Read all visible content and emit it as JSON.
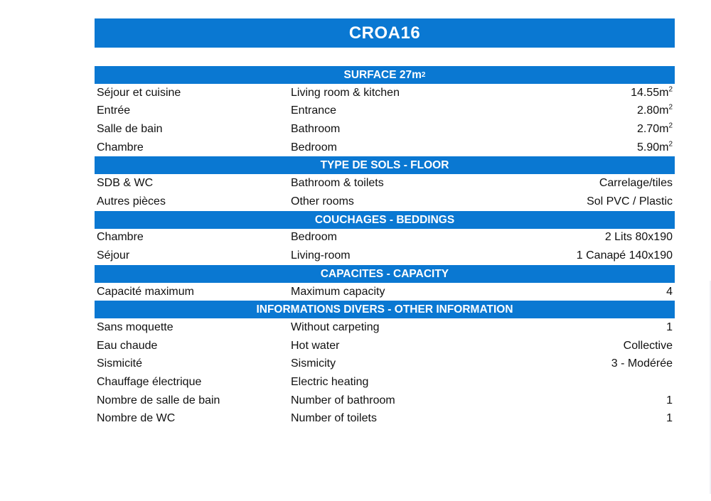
{
  "title": "CROA16",
  "sections": [
    {
      "heading": "SURFACE 27m",
      "heading_sup": "2",
      "rows": [
        {
          "fr": "Séjour et cuisine",
          "en": "Living room & kitchen",
          "value": "14.55m",
          "sup": "2"
        },
        {
          "fr": "Entrée",
          "en": "Entrance",
          "value": "2.80m",
          "sup": "2"
        },
        {
          "fr": "Salle de bain",
          "en": "Bathroom",
          "value": "2.70m",
          "sup": "2"
        },
        {
          "fr": "Chambre",
          "en": "Bedroom",
          "value": "5.90m",
          "sup": "2"
        }
      ]
    },
    {
      "heading": "TYPE DE SOLS - FLOOR",
      "rows": [
        {
          "fr": "SDB & WC",
          "en": "Bathroom & toilets",
          "value": "Carrelage/tiles"
        },
        {
          "fr": "Autres pièces",
          "en": "Other rooms",
          "value": "Sol PVC / Plastic"
        }
      ]
    },
    {
      "heading": "COUCHAGES - BEDDINGS",
      "rows": [
        {
          "fr": "Chambre",
          "en": "Bedroom",
          "value": "2 Lits 80x190"
        },
        {
          "fr": "Séjour",
          "en": "Living-room",
          "value": "1 Canapé 140x190"
        }
      ]
    },
    {
      "heading": "CAPACITES - CAPACITY",
      "rows": [
        {
          "fr": "Capacité maximum",
          "en": "Maximum capacity",
          "value": "4"
        }
      ]
    },
    {
      "heading": "INFORMATIONS DIVERS - OTHER INFORMATION",
      "rows": [
        {
          "fr": "Sans moquette",
          "en": "Without carpeting",
          "value": "1"
        },
        {
          "fr": "Eau chaude",
          "en": "Hot water",
          "value": "Collective"
        },
        {
          "fr": "Sismicité",
          "en": "Sismicity",
          "value": "3 - Modérée"
        },
        {
          "fr": "Chauffage électrique",
          "en": "Electric heating",
          "value": ""
        },
        {
          "fr": "Nombre de salle de bain",
          "en": "Number of bathroom",
          "value": "1"
        },
        {
          "fr": "Nombre de WC",
          "en": "Number of toilets",
          "value": "1"
        }
      ]
    }
  ],
  "colors": {
    "header_bg": "#0a78d2",
    "header_text": "#ffffff"
  }
}
